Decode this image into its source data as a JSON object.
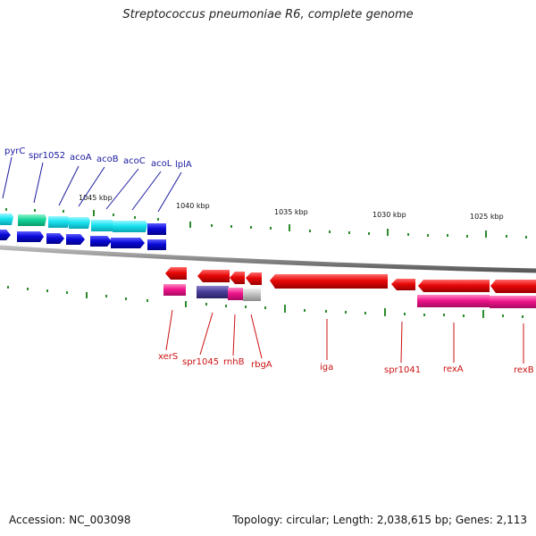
{
  "title": "Streptococcus pneumoniae R6, complete genome",
  "footer": {
    "accession": "Accession: NC_003098",
    "summary": "Topology: circular; Length: 2,038,615 bp; Genes: 2,113"
  },
  "axis": {
    "kbp_labels": [
      "1045 kbp",
      "1040 kbp",
      "1035 kbp",
      "1030 kbp",
      "1025 kbp"
    ]
  },
  "colors": {
    "forward_gene": "#0a0ad8",
    "reverse_gene": "#e80808",
    "cog_cyan": "#19e4f0",
    "cog_teal": "#16d69a",
    "cog_magenta": "#f0148c",
    "cog_purple": "#4a3f9a",
    "cog_grey": "#c2c2c2",
    "tick_green": "#2c8a2c",
    "backbone": "#8a8a8a"
  },
  "genes_top": [
    "pyrC",
    "spr1052",
    "acoA",
    "acoB",
    "acoC",
    "acoL",
    "lplA"
  ],
  "genes_bottom": [
    "xerS",
    "spr1045",
    "rnhB",
    "rbgA",
    "iga",
    "spr1041",
    "rexA",
    "rexB"
  ]
}
